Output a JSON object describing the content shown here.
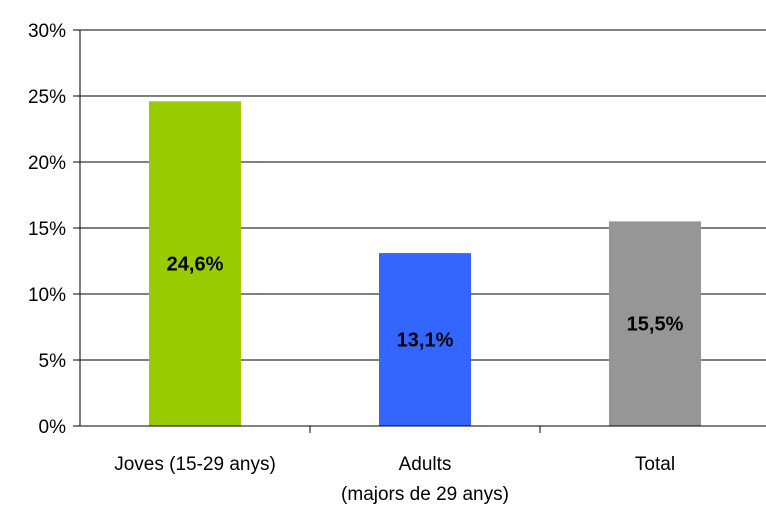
{
  "chart_data": {
    "type": "bar",
    "categories": [
      [
        "Joves (15-29 anys)"
      ],
      [
        "Adults",
        "(majors de 29 anys)"
      ],
      [
        "Total"
      ]
    ],
    "values": [
      24.6,
      13.1,
      15.5
    ],
    "data_labels": [
      "24,6%",
      "13,1%",
      "15,5%"
    ],
    "colors": [
      "#99cc00",
      "#3366ff",
      "#969696"
    ],
    "ylim": [
      0,
      30
    ],
    "yticks": [
      0,
      5,
      10,
      15,
      20,
      25,
      30
    ],
    "ytick_labels": [
      "0%",
      "5%",
      "10%",
      "15%",
      "20%",
      "25%",
      "30%"
    ],
    "grid": true,
    "legend": "none"
  }
}
